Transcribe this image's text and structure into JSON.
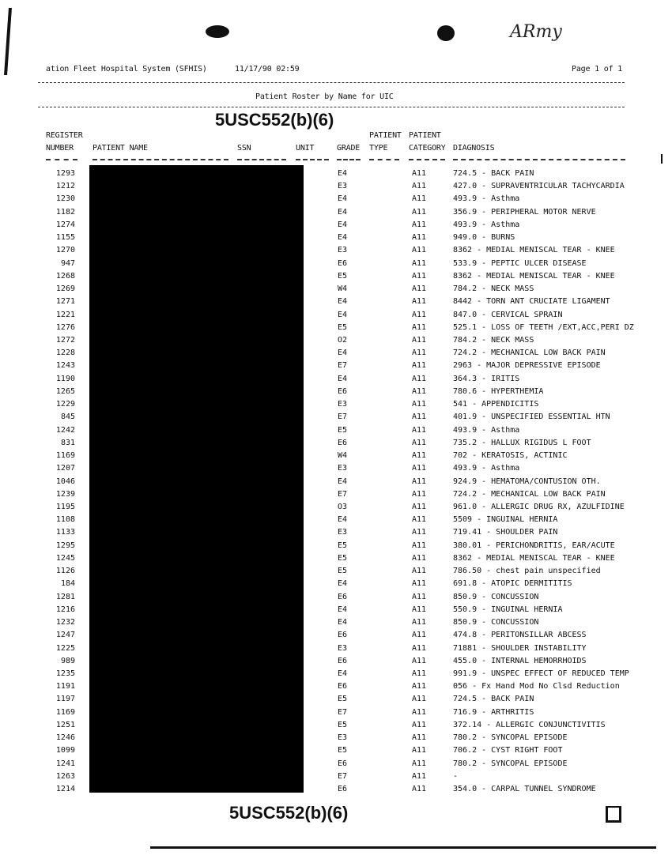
{
  "header": {
    "system": "ation Fleet Hospital System (SFHIS)",
    "datetime": "11/17/90  02:59",
    "page": "Page 1 of 1",
    "report_title": "Patient Roster by Name for UIC",
    "handwritten_note": "ARmy"
  },
  "redaction": {
    "top_label": "5USC552(b)(6)",
    "bottom_label": "5USC552(b)(6)"
  },
  "columns": {
    "register_line1": "REGISTER",
    "register_line2": "NUMBER",
    "patient_name": "PATIENT NAME",
    "ssn": "SSN",
    "unit": "UNIT",
    "grade": "GRADE",
    "type_line1": "PATIENT",
    "type_line2": "TYPE",
    "category_line1": "PATIENT",
    "category_line2": "CATEGORY",
    "diagnosis": "DIAGNOSIS"
  },
  "rows": [
    {
      "register": "1293",
      "grade": "E4",
      "category": "A11",
      "diagnosis": "724.5 - BACK PAIN"
    },
    {
      "register": "1212",
      "grade": "E3",
      "category": "A11",
      "diagnosis": "427.0 - SUPRAVENTRICULAR TACHYCARDIA"
    },
    {
      "register": "1230",
      "grade": "E4",
      "category": "A11",
      "diagnosis": "493.9 - Asthma"
    },
    {
      "register": "1182",
      "grade": "E4",
      "category": "A11",
      "diagnosis": "356.9 - PERIPHERAL MOTOR NERVE"
    },
    {
      "register": "1274",
      "grade": "E4",
      "category": "A11",
      "diagnosis": "493.9 - Asthma"
    },
    {
      "register": "1155",
      "grade": "E4",
      "category": "A11",
      "diagnosis": "949.0 - BURNS"
    },
    {
      "register": "1270",
      "grade": "E3",
      "category": "A11",
      "diagnosis": "8362 - MEDIAL MENISCAL TEAR - KNEE"
    },
    {
      "register": "947",
      "grade": "E6",
      "category": "A11",
      "diagnosis": "533.9 - PEPTIC ULCER DISEASE"
    },
    {
      "register": "1268",
      "grade": "E5",
      "category": "A11",
      "diagnosis": "8362 - MEDIAL MENISCAL TEAR - KNEE"
    },
    {
      "register": "1269",
      "grade": "W4",
      "category": "A11",
      "diagnosis": "784.2 - NECK MASS"
    },
    {
      "register": "1271",
      "grade": "E4",
      "category": "A11",
      "diagnosis": "8442 - TORN ANT CRUCIATE LIGAMENT"
    },
    {
      "register": "1221",
      "grade": "E4",
      "category": "A11",
      "diagnosis": "847.0 - CERVICAL SPRAIN"
    },
    {
      "register": "1276",
      "grade": "E5",
      "category": "A11",
      "diagnosis": "525.1 - LOSS OF TEETH /EXT,ACC,PERI DZ"
    },
    {
      "register": "1272",
      "grade": "O2",
      "category": "A11",
      "diagnosis": "784.2 - NECK MASS"
    },
    {
      "register": "1228",
      "grade": "E4",
      "category": "A11",
      "diagnosis": "724.2 - MECHANICAL LOW BACK PAIN"
    },
    {
      "register": "1243",
      "grade": "E7",
      "category": "A11",
      "diagnosis": "2963 - MAJOR DEPRESSIVE EPISODE"
    },
    {
      "register": "1190",
      "grade": "E4",
      "category": "A11",
      "diagnosis": "364.3 - IRITIS"
    },
    {
      "register": "1265",
      "grade": "E6",
      "category": "A11",
      "diagnosis": "780.6 - HYPERTHEMIA"
    },
    {
      "register": "1229",
      "grade": "E3",
      "category": "A11",
      "diagnosis": "541 - APPENDICITIS"
    },
    {
      "register": "845",
      "grade": "E7",
      "category": "A11",
      "diagnosis": "401.9 - UNSPECIFIED ESSENTIAL HTN"
    },
    {
      "register": "1242",
      "grade": "E5",
      "category": "A11",
      "diagnosis": "493.9 - Asthma"
    },
    {
      "register": "831",
      "grade": "E6",
      "category": "A11",
      "diagnosis": "735.2 - HALLUX RIGIDUS L FOOT"
    },
    {
      "register": "1169",
      "grade": "W4",
      "category": "A11",
      "diagnosis": "702 - KERATOSIS, ACTINIC"
    },
    {
      "register": "1207",
      "grade": "E3",
      "category": "A11",
      "diagnosis": "493.9 - Asthma"
    },
    {
      "register": "1046",
      "grade": "E4",
      "category": "A11",
      "diagnosis": "924.9 - HEMATOMA/CONTUSION OTH."
    },
    {
      "register": "1239",
      "grade": "E7",
      "category": "A11",
      "diagnosis": "724.2 - MECHANICAL LOW BACK PAIN"
    },
    {
      "register": "1195",
      "grade": "O3",
      "category": "A11",
      "diagnosis": "961.0 - ALLERGIC DRUG RX, AZULFIDINE"
    },
    {
      "register": "1108",
      "grade": "E4",
      "category": "A11",
      "diagnosis": "5509 - INGUINAL HERNIA"
    },
    {
      "register": "1133",
      "grade": "E3",
      "category": "A11",
      "diagnosis": "719.41 - SHOULDER PAIN"
    },
    {
      "register": "1295",
      "grade": "E5",
      "category": "A11",
      "diagnosis": "380.01 - PERICHONDRITIS, EAR/ACUTE"
    },
    {
      "register": "1245",
      "grade": "E5",
      "category": "A11",
      "diagnosis": "8362 - MEDIAL MENISCAL TEAR - KNEE"
    },
    {
      "register": "1126",
      "grade": "E5",
      "category": "A11",
      "diagnosis": "786.50 - chest pain unspecified"
    },
    {
      "register": "184",
      "grade": "E4",
      "category": "A11",
      "diagnosis": "691.8 - ATOPIC DERMITITIS"
    },
    {
      "register": "1281",
      "grade": "E6",
      "category": "A11",
      "diagnosis": "850.9 - CONCUSSION"
    },
    {
      "register": "1216",
      "grade": "E4",
      "category": "A11",
      "diagnosis": "550.9 - INGUINAL HERNIA"
    },
    {
      "register": "1232",
      "grade": "E4",
      "category": "A11",
      "diagnosis": "850.9 - CONCUSSION"
    },
    {
      "register": "1247",
      "grade": "E6",
      "category": "A11",
      "diagnosis": "474.8 - PERITONSILLAR ABCESS"
    },
    {
      "register": "1225",
      "grade": "E3",
      "category": "A11",
      "diagnosis": "71881 - SHOULDER INSTABILITY"
    },
    {
      "register": "989",
      "grade": "E6",
      "category": "A11",
      "diagnosis": "455.0 - INTERNAL HEMORRHOIDS"
    },
    {
      "register": "1235",
      "grade": "E4",
      "category": "A11",
      "diagnosis": "991.9 - UNSPEC EFFECT OF REDUCED TEMP"
    },
    {
      "register": "1191",
      "grade": "E6",
      "category": "A11",
      "diagnosis": "056 - Fx Hand Mod No Clsd Reduction"
    },
    {
      "register": "1197",
      "grade": "E5",
      "category": "A11",
      "diagnosis": "724.5 - BACK PAIN"
    },
    {
      "register": "1169",
      "grade": "E7",
      "category": "A11",
      "diagnosis": "716.9 - ARTHRITIS"
    },
    {
      "register": "1251",
      "grade": "E5",
      "category": "A11",
      "diagnosis": "372.14 - ALLERGIC CONJUNCTIVITIS"
    },
    {
      "register": "1246",
      "grade": "E3",
      "category": "A11",
      "diagnosis": "780.2 - SYNCOPAL EPISODE"
    },
    {
      "register": "1099",
      "grade": "E5",
      "category": "A11",
      "diagnosis": "706.2 - CYST RIGHT FOOT"
    },
    {
      "register": "1241",
      "grade": "E6",
      "category": "A11",
      "diagnosis": "780.2 - SYNCOPAL EPISODE"
    },
    {
      "register": "1263",
      "grade": "E7",
      "category": "A11",
      "diagnosis": "-"
    },
    {
      "register": "1214",
      "grade": "E6",
      "category": "A11",
      "diagnosis": "354.0 - CARPAL TUNNEL SYNDROME"
    }
  ]
}
